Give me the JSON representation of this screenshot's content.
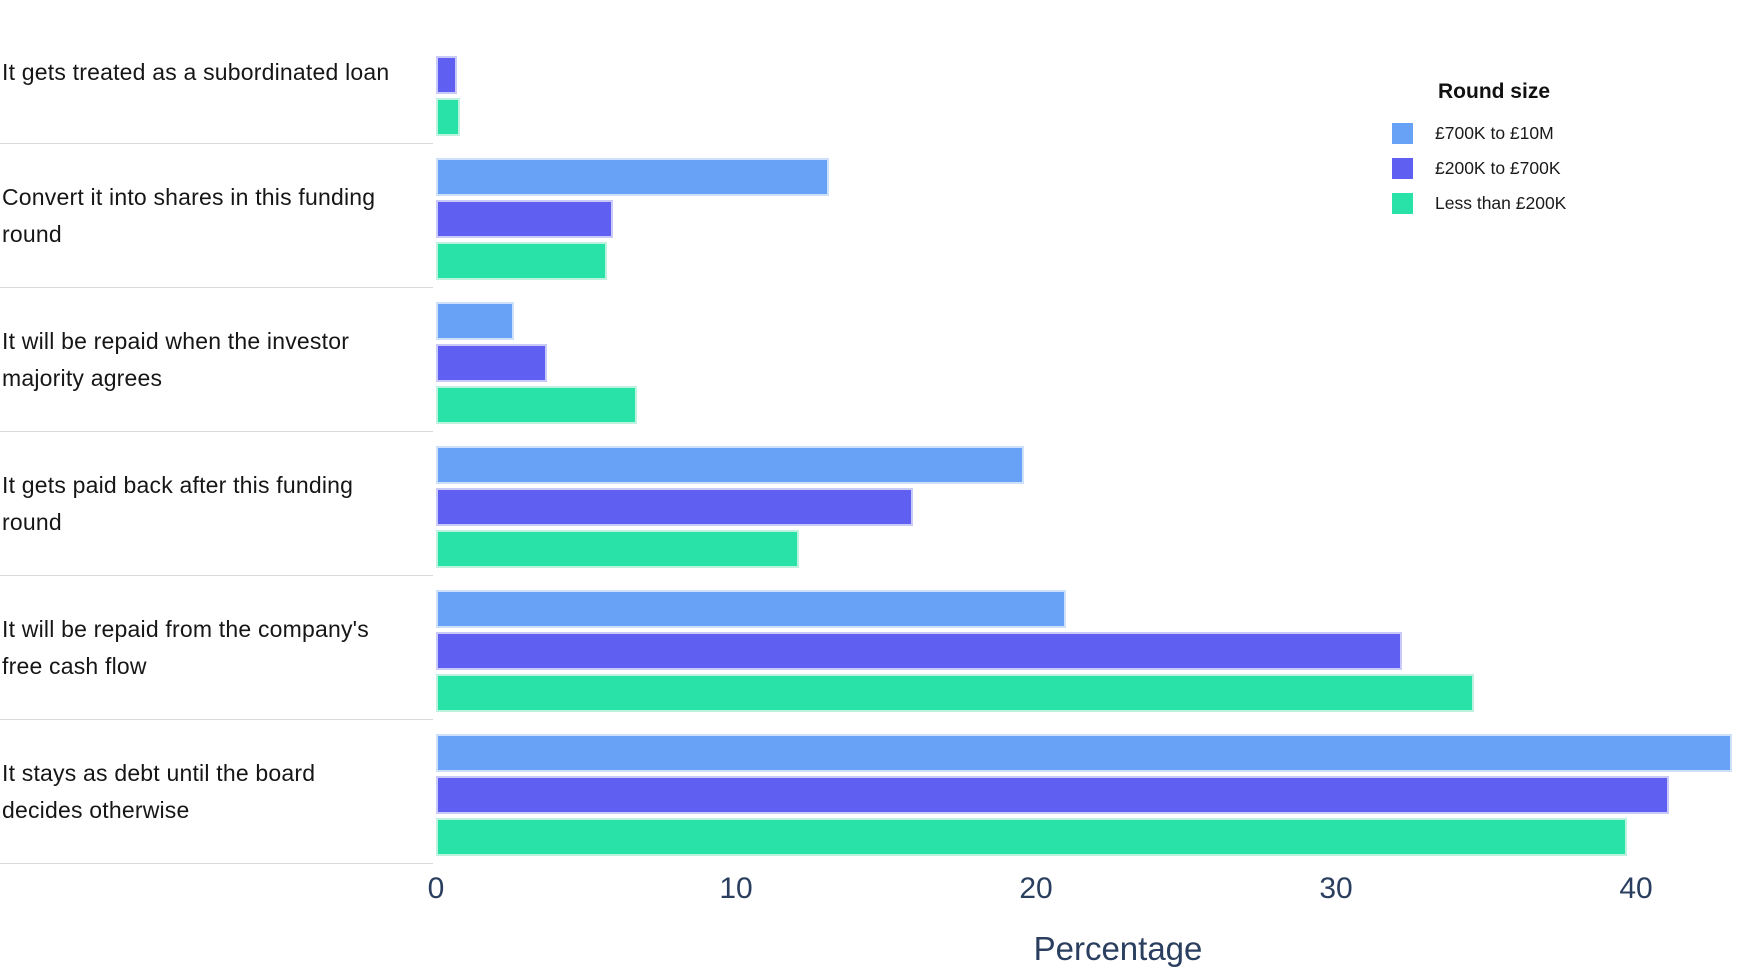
{
  "chart_data": {
    "type": "bar",
    "orientation": "horizontal",
    "xlabel": "Percentage",
    "x_ticks": [
      0,
      10,
      20,
      30,
      40
    ],
    "x_range": [
      0,
      43.4
    ],
    "grid": false,
    "legend_title": "Round size",
    "legend_position": "top-right",
    "categories": [
      "It gets treated as a subordinated loan",
      "Convert it into shares in this funding round",
      "It will be repaid when the investor majority agrees",
      "It gets paid back after this funding round",
      "It will be repaid from the company's free cash flow",
      "It stays as debt until the board decides otherwise"
    ],
    "categories_display": [
      [
        "It gets treated as a subordinated loan"
      ],
      [
        "Convert it into shares in this funding",
        "round"
      ],
      [
        "It will be repaid when the investor",
        "majority agrees"
      ],
      [
        "It gets paid back after this funding",
        "round"
      ],
      [
        "It will be repaid from the company's",
        "free cash flow"
      ],
      [
        "It stays as debt until the board",
        "decides otherwise"
      ]
    ],
    "series": [
      {
        "name": "£700K to £10M",
        "color": "#68a2f6",
        "border_color": "#cfe0fb",
        "values": [
          0,
          13.1,
          2.6,
          19.6,
          21.0,
          43.2
        ]
      },
      {
        "name": "£200K to £700K",
        "color": "#5f5ff2",
        "border_color": "#c9c9fa",
        "values": [
          0.7,
          5.9,
          3.7,
          15.9,
          32.2,
          41.1
        ]
      },
      {
        "name": "Less than £200K",
        "color": "#28e2a8",
        "border_color": "#bdf2de",
        "values": [
          0.8,
          5.7,
          6.7,
          12.1,
          34.6,
          39.7
        ]
      }
    ]
  },
  "colors": {
    "background": "#ffffff",
    "tick_text": "#2a3f5f",
    "axis_title_text": "#2a3f5f",
    "category_label_text": "#161616",
    "legend_text": "#1a1a1a",
    "separator": "#d9d9d9"
  }
}
